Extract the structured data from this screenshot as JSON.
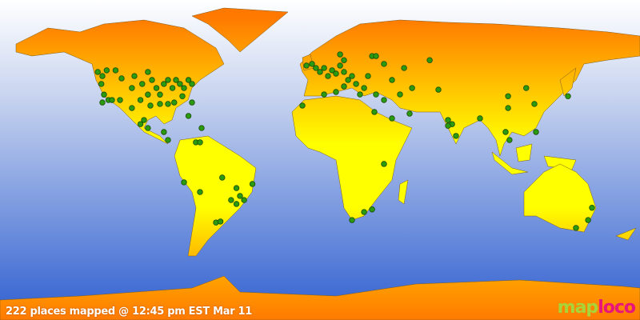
{
  "caption": "222 places mapped @ 12:45 pm EST Mar 11",
  "logo": {
    "part1": "map",
    "part2": "loco"
  },
  "colors": {
    "ocean_top": "#ffffff",
    "ocean_bottom": "#3366d0",
    "land_top": "#ff7a00",
    "land_bottom": "#ffff00",
    "marker": "#2a9a10"
  },
  "markers": [
    [
      -125,
      48.8
    ],
    [
      -122.4,
      46.3
    ],
    [
      -120,
      49.8
    ],
    [
      -123,
      41.5
    ],
    [
      -121.5,
      35
    ],
    [
      -119,
      31.7
    ],
    [
      -115,
      49.8
    ],
    [
      -111.6,
      44.9
    ],
    [
      -105.8,
      39
    ],
    [
      -104.4,
      46.3
    ],
    [
      -100,
      41.5
    ],
    [
      -96.8,
      48.8
    ],
    [
      -94.5,
      43.9
    ],
    [
      -92,
      39
    ],
    [
      -90,
      35
    ],
    [
      -87.8,
      41.5
    ],
    [
      -85.5,
      43.9
    ],
    [
      -83,
      39
    ],
    [
      -81,
      43.9
    ],
    [
      -78.8,
      41.5
    ],
    [
      -76.5,
      39
    ],
    [
      -74,
      43.9
    ],
    [
      -72,
      41.5
    ],
    [
      -77.4,
      34
    ],
    [
      -82,
      30.2
    ],
    [
      -85.5,
      29.3
    ],
    [
      -90,
      29.3
    ],
    [
      -95.4,
      28.3
    ],
    [
      -96.8,
      35
    ],
    [
      -101,
      31.7
    ],
    [
      -105.8,
      26.8
    ],
    [
      -112.5,
      31.7
    ],
    [
      -117,
      31.7
    ],
    [
      -122.4,
      30.2
    ],
    [
      -99,
      19.5
    ],
    [
      -101,
      17
    ],
    [
      -96.8,
      14.6
    ],
    [
      -87.8,
      12.2
    ],
    [
      -85.5,
      7.3
    ],
    [
      -69.8,
      5.9
    ],
    [
      -66.6,
      14.6
    ],
    [
      -74,
      22
    ],
    [
      -72,
      30.2
    ],
    [
      -7.6,
      52.7
    ],
    [
      -4.5,
      53.7
    ],
    [
      -2.3,
      51.2
    ],
    [
      0,
      48.8
    ],
    [
      2.3,
      51.2
    ],
    [
      4.5,
      46.3
    ],
    [
      6.8,
      49.8
    ],
    [
      9,
      47.8
    ],
    [
      11.3,
      52.7
    ],
    [
      13.5,
      48.8
    ],
    [
      15.8,
      43.9
    ],
    [
      18,
      46.3
    ],
    [
      20.3,
      41.5
    ],
    [
      11.3,
      59.5
    ],
    [
      13.5,
      56
    ],
    [
      29.3,
      58.5
    ],
    [
      31.5,
      58.5
    ],
    [
      36,
      53.7
    ],
    [
      40.5,
      43.9
    ],
    [
      27,
      46.3
    ],
    [
      24.8,
      39
    ],
    [
      22.5,
      35.1
    ],
    [
      31.5,
      35.1
    ],
    [
      36,
      31.7
    ],
    [
      45,
      35.1
    ],
    [
      47.3,
      51.2
    ],
    [
      51.8,
      39
    ],
    [
      61.7,
      56
    ],
    [
      -9.9,
      28.3
    ],
    [
      2.3,
      35.1
    ],
    [
      9,
      36.6
    ],
    [
      13.5,
      40
    ],
    [
      30.6,
      24.4
    ],
    [
      40.5,
      20.5
    ],
    [
      50.4,
      23.4
    ],
    [
      66.6,
      38
    ],
    [
      72,
      19.5
    ],
    [
      74.3,
      17
    ],
    [
      76.5,
      9.8
    ],
    [
      72,
      16
    ],
    [
      90,
      20.5
    ],
    [
      105.8,
      26.8
    ],
    [
      105.8,
      34
    ],
    [
      116,
      39
    ],
    [
      120.6,
      29.3
    ],
    [
      121.5,
      12.2
    ],
    [
      104.4,
      12.2
    ],
    [
      106.6,
      7.3
    ],
    [
      139.5,
      34
    ],
    [
      36,
      -7.3
    ],
    [
      24.8,
      -36.6
    ],
    [
      18,
      -41.5
    ],
    [
      29.3,
      -35
    ],
    [
      153,
      -34
    ],
    [
      150.8,
      -41.5
    ],
    [
      144,
      -46.3
    ],
    [
      -76.5,
      -18.5
    ],
    [
      -67.5,
      -24.4
    ],
    [
      -55,
      -15.6
    ],
    [
      -47,
      -22
    ],
    [
      -45,
      -26.8
    ],
    [
      -50,
      -29.3
    ],
    [
      -47,
      -31.7
    ],
    [
      -42.7,
      -29.3
    ],
    [
      -38,
      -19.5
    ],
    [
      -58.5,
      -43
    ],
    [
      -56,
      -42.4
    ],
    [
      -67.5,
      5.9
    ]
  ]
}
